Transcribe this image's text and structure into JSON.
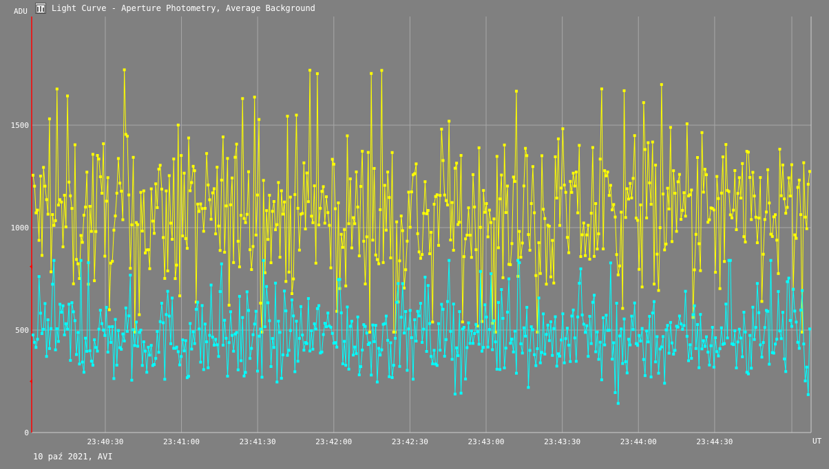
{
  "window": {
    "title": "Light Curve - Aperture Photometry, Average Background"
  },
  "footer": {
    "caption": "10 paź 2021, AVI"
  },
  "chart_data": {
    "type": "line",
    "title": "Light Curve - Aperture Photometry, Average Background",
    "ylabel": "ADU",
    "xlabel": "UT",
    "ylim": [
      0,
      2030
    ],
    "y_ticks": [
      0,
      500,
      1000,
      1500
    ],
    "x_tick_labels": [
      "23:40:30",
      "23:41:00",
      "23:41:30",
      "23:42:00",
      "23:42:30",
      "23:43:00",
      "23:43:30",
      "23:44:00",
      "23:44:30"
    ],
    "x_range": [
      "23:40:01",
      "23:45:08"
    ],
    "grid": true,
    "series": [
      {
        "color": "#ffff00",
        "approx_mean": 1050,
        "approx_min": 490,
        "approx_max": 1800
      },
      {
        "color": "#00ffff",
        "approx_mean": 470,
        "approx_min": 110,
        "approx_max": 840
      }
    ],
    "colors": {
      "background": "#808080",
      "grid": "#a8a8a8",
      "marker_axis": "#ff0000"
    }
  }
}
